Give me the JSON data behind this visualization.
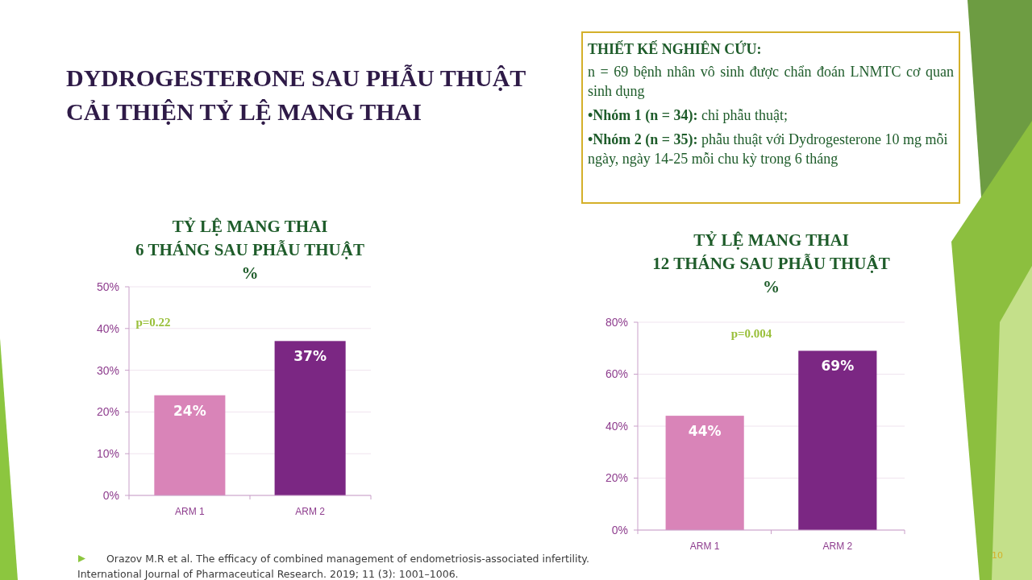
{
  "chart_data": [
    {
      "type": "other",
      "title": "DYDROGESTERONE SAU PHẪU THUẬT\nCẢI THIỆN TỶ LỆ MANG THAI",
      "annotations": [
        "THIẾT KẾ NGHIÊN CỨU:",
        "n = 69 bệnh nhân vô sinh được chẩn đoán LNMTC cơ quan sinh dụng",
        "•Nhóm 1 (n = 34): chỉ phẫu thuật;",
        "•Nhóm 2 (n = 35): phẫu thuật với Dydrogesterone 10 mg mỗi ngày, ngày 14-25 mỗi chu kỳ trong 6 tháng",
        "Orazov M.R et al. The efficacy of combined management of endometriosis-associated infertility. International Journal of Pharmaceutical Research. 2019; 11 (3): 1001–1006.",
        "10"
      ]
    },
    {
      "type": "bar",
      "title": "TỶ LỆ MANG THAI\n6 THÁNG SAU PHẪU THUẬT\n%",
      "categories": [
        "ARM 1",
        "ARM 2"
      ],
      "values": [
        24,
        37
      ],
      "colors": [
        "#d984b8",
        "#7b2783"
      ],
      "value_labels": [
        "24%",
        "37%"
      ],
      "ylim": [
        0,
        50
      ],
      "yticks": [
        {
          "value": 0,
          "label": "0%"
        },
        {
          "value": 10,
          "label": "10%"
        },
        {
          "value": 20,
          "label": "20%"
        },
        {
          "value": 30,
          "label": "30%"
        },
        {
          "value": 40,
          "label": "40%"
        },
        {
          "value": 50,
          "label": "50%"
        }
      ],
      "grid": "y",
      "annotations": [
        "p=0.22"
      ]
    },
    {
      "type": "bar",
      "title": "TỶ LỆ MANG THAI\n12 THÁNG SAU PHẪU THUẬT\n%",
      "categories": [
        "ARM 1",
        "ARM 2"
      ],
      "values": [
        44,
        69
      ],
      "colors": [
        "#d984b8",
        "#7b2783"
      ],
      "value_labels": [
        "44%",
        "69%"
      ],
      "ylim": [
        0,
        80
      ],
      "yticks": [
        {
          "value": 0,
          "label": "0%"
        },
        {
          "value": 20,
          "label": "20%"
        },
        {
          "value": 40,
          "label": "40%"
        },
        {
          "value": 60,
          "label": "60%"
        },
        {
          "value": 80,
          "label": "80%"
        }
      ],
      "grid": "y",
      "annotations": [
        "p=0.004"
      ]
    }
  ]
}
